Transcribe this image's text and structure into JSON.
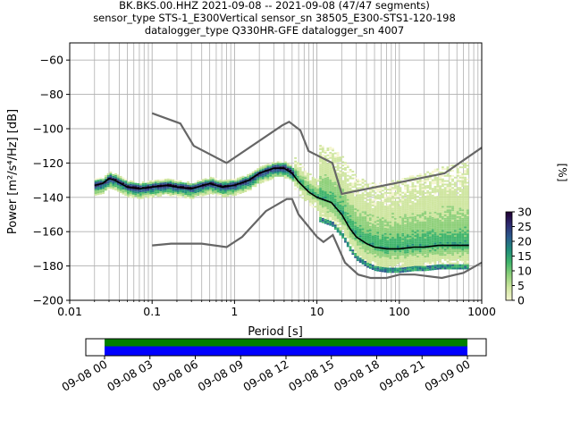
{
  "chart_data": [
    {
      "type": "heatmap",
      "title_lines": [
        "BK.BKS.00.HHZ   2021-09-08 -- 2021-09-08  (47/47 segments)",
        "sensor_type STS-1_E300Vertical sensor_sn 38505_E300-STS1-120-198",
        "datalogger_type Q330HR-GFE datalogger_sn 4007"
      ],
      "xlabel": "Period [s]",
      "ylabel": "Power [m²/s⁴/Hz] [dB]",
      "xscale": "log",
      "xlim": [
        0.01,
        1000
      ],
      "ylim": [
        -200,
        -50
      ],
      "xticks": [
        {
          "value": 0.01,
          "label": "0.01"
        },
        {
          "value": 0.1,
          "label": "0.1"
        },
        {
          "value": 1,
          "label": "1"
        },
        {
          "value": 10,
          "label": "10"
        },
        {
          "value": 100,
          "label": "100"
        },
        {
          "value": 1000,
          "label": "1000"
        }
      ],
      "yticks": [
        {
          "value": -60,
          "label": "−60"
        },
        {
          "value": -80,
          "label": "−80"
        },
        {
          "value": -100,
          "label": "−100"
        },
        {
          "value": -120,
          "label": "−120"
        },
        {
          "value": -140,
          "label": "−140"
        },
        {
          "value": -160,
          "label": "−160"
        },
        {
          "value": -180,
          "label": "−180"
        },
        {
          "value": -200,
          "label": "−200"
        }
      ],
      "grid": true,
      "noise_model_high": {
        "x": [
          0.1,
          0.22,
          0.32,
          0.8,
          3.8,
          4.6,
          6.3,
          7.9,
          15.4,
          20,
          354.8,
          1000
        ],
        "y": [
          -91,
          -97,
          -110,
          -120,
          -98,
          -96,
          -101,
          -113,
          -120,
          -138,
          -126,
          -111
        ]
      },
      "noise_model_low": {
        "x": [
          0.1,
          0.17,
          0.4,
          0.8,
          1.24,
          2.4,
          4.3,
          5,
          6,
          10,
          12,
          15.6,
          21.9,
          31.6,
          45,
          70,
          101,
          154,
          328,
          600,
          1000
        ],
        "y": [
          -168,
          -167,
          -167,
          -169,
          -163,
          -148,
          -141,
          -141,
          -150,
          -163,
          -166,
          -162,
          -178,
          -185,
          -187,
          -187,
          -185,
          -185,
          -187,
          -184,
          -178
        ]
      },
      "mean_curve": {
        "x": [
          0.02,
          0.025,
          0.03,
          0.035,
          0.05,
          0.07,
          0.1,
          0.15,
          0.2,
          0.3,
          0.5,
          0.7,
          1,
          1.5,
          2,
          3,
          4,
          5,
          6,
          8,
          10,
          15,
          20,
          25,
          30,
          40,
          50,
          70,
          100,
          150,
          200,
          300,
          500,
          700
        ],
        "y": [
          -133,
          -132,
          -129,
          -130,
          -134,
          -135,
          -134,
          -133,
          -134,
          -135,
          -132,
          -134,
          -133,
          -130,
          -126,
          -123,
          -123,
          -126,
          -131,
          -137,
          -140,
          -143,
          -150,
          -158,
          -163,
          -167,
          -169,
          -170,
          -170,
          -169,
          -169,
          -168,
          -168,
          -168
        ]
      },
      "colorbar": {
        "label": "[%]",
        "range": [
          0,
          30
        ],
        "ticks": [
          {
            "value": 0,
            "label": "0"
          },
          {
            "value": 5,
            "label": "5"
          },
          {
            "value": 10,
            "label": "10"
          },
          {
            "value": 15,
            "label": "15"
          },
          {
            "value": 20,
            "label": "20"
          },
          {
            "value": 25,
            "label": "25"
          },
          {
            "value": 30,
            "label": "30"
          }
        ],
        "colors": [
          "#f5f5d0",
          "#cfe6a0",
          "#8fd07a",
          "#3fb46b",
          "#1f8c7a",
          "#2a5a8c",
          "#2d2a70",
          "#200030"
        ]
      }
    },
    {
      "type": "timeline",
      "tick_labels": [
        "09-08 00",
        "09-08 03",
        "09-08 06",
        "09-08 09",
        "09-08 12",
        "09-08 15",
        "09-08 18",
        "09-08 21",
        "09-09 00"
      ],
      "tick_hours": [
        0,
        3,
        6,
        9,
        12,
        15,
        18,
        21,
        24
      ],
      "coverage": [
        {
          "start_hour": 0,
          "end_hour": 24
        }
      ],
      "colors": {
        "data": "#0000ff",
        "processed": "#008000"
      }
    }
  ]
}
